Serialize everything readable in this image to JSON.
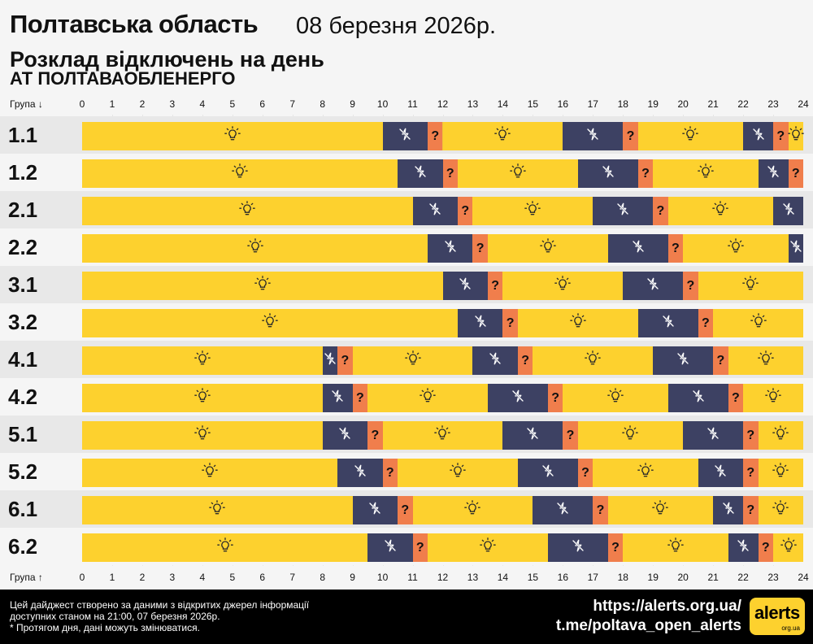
{
  "header": {
    "region": "Полтавська область",
    "date": "08 березня 2026р.",
    "subtitle": "Розклад відключень на день",
    "company": "АТ ПОЛТАВАОБЛЕНЕРГО"
  },
  "axis": {
    "group_label_top": "Група ↓",
    "group_label_bottom": "Група ↑",
    "hours": [
      "0",
      "1",
      "2",
      "3",
      "4",
      "5",
      "6",
      "7",
      "8",
      "9",
      "10",
      "11",
      "12",
      "13",
      "14",
      "15",
      "16",
      "17",
      "18",
      "19",
      "20",
      "21",
      "22",
      "23",
      "24"
    ]
  },
  "legend_icons": {
    "on": "lightbulb-icon",
    "off": "no-power-icon",
    "maybe": "question-mark"
  },
  "colors": {
    "on": "#fdd12e",
    "off": "#3d4163",
    "maybe": "#f07e4c",
    "background": "#f5f5f5"
  },
  "groups": [
    {
      "label": "1.1",
      "segments": [
        [
          "on",
          0,
          10
        ],
        [
          "off",
          10,
          11.5
        ],
        [
          "maybe",
          11.5,
          12
        ],
        [
          "on",
          12,
          16
        ],
        [
          "off",
          16,
          18
        ],
        [
          "maybe",
          18,
          18.5
        ],
        [
          "on",
          18.5,
          22
        ],
        [
          "off",
          22,
          23
        ],
        [
          "maybe",
          23,
          23.5
        ],
        [
          "on",
          23.5,
          24
        ]
      ]
    },
    {
      "label": "1.2",
      "segments": [
        [
          "on",
          0,
          10.5
        ],
        [
          "off",
          10.5,
          12
        ],
        [
          "maybe",
          12,
          12.5
        ],
        [
          "on",
          12.5,
          16.5
        ],
        [
          "off",
          16.5,
          18.5
        ],
        [
          "maybe",
          18.5,
          19
        ],
        [
          "on",
          19,
          22.5
        ],
        [
          "off",
          22.5,
          23.5
        ],
        [
          "maybe",
          23.5,
          24
        ]
      ]
    },
    {
      "label": "2.1",
      "segments": [
        [
          "on",
          0,
          11
        ],
        [
          "off",
          11,
          12.5
        ],
        [
          "maybe",
          12.5,
          13
        ],
        [
          "on",
          13,
          17
        ],
        [
          "off",
          17,
          19
        ],
        [
          "maybe",
          19,
          19.5
        ],
        [
          "on",
          19.5,
          23
        ],
        [
          "off",
          23,
          24
        ]
      ]
    },
    {
      "label": "2.2",
      "segments": [
        [
          "on",
          0,
          11.5
        ],
        [
          "off",
          11.5,
          13
        ],
        [
          "maybe",
          13,
          13.5
        ],
        [
          "on",
          13.5,
          17.5
        ],
        [
          "off",
          17.5,
          19.5
        ],
        [
          "maybe",
          19.5,
          20
        ],
        [
          "on",
          20,
          23.5
        ],
        [
          "off",
          23.5,
          24
        ]
      ]
    },
    {
      "label": "3.1",
      "segments": [
        [
          "on",
          0,
          12
        ],
        [
          "off",
          12,
          13.5
        ],
        [
          "maybe",
          13.5,
          14
        ],
        [
          "on",
          14,
          18
        ],
        [
          "off",
          18,
          20
        ],
        [
          "maybe",
          20,
          20.5
        ],
        [
          "on",
          20.5,
          24
        ]
      ]
    },
    {
      "label": "3.2",
      "segments": [
        [
          "on",
          0,
          12.5
        ],
        [
          "off",
          12.5,
          14
        ],
        [
          "maybe",
          14,
          14.5
        ],
        [
          "on",
          14.5,
          18.5
        ],
        [
          "off",
          18.5,
          20.5
        ],
        [
          "maybe",
          20.5,
          21
        ],
        [
          "on",
          21,
          24
        ]
      ]
    },
    {
      "label": "4.1",
      "segments": [
        [
          "on",
          0,
          8
        ],
        [
          "off",
          8,
          8.5
        ],
        [
          "maybe",
          8.5,
          9
        ],
        [
          "on",
          9,
          13
        ],
        [
          "off",
          13,
          14.5
        ],
        [
          "maybe",
          14.5,
          15
        ],
        [
          "on",
          15,
          19
        ],
        [
          "off",
          19,
          21
        ],
        [
          "maybe",
          21,
          21.5
        ],
        [
          "on",
          21.5,
          24
        ]
      ]
    },
    {
      "label": "4.2",
      "segments": [
        [
          "on",
          0,
          8
        ],
        [
          "off",
          8,
          9
        ],
        [
          "maybe",
          9,
          9.5
        ],
        [
          "on",
          9.5,
          13.5
        ],
        [
          "off",
          13.5,
          15.5
        ],
        [
          "maybe",
          15.5,
          16
        ],
        [
          "on",
          16,
          19.5
        ],
        [
          "off",
          19.5,
          21.5
        ],
        [
          "maybe",
          21.5,
          22
        ],
        [
          "on",
          22,
          24
        ]
      ]
    },
    {
      "label": "5.1",
      "segments": [
        [
          "on",
          0,
          8
        ],
        [
          "off",
          8,
          9.5
        ],
        [
          "maybe",
          9.5,
          10
        ],
        [
          "on",
          10,
          14
        ],
        [
          "off",
          14,
          16
        ],
        [
          "maybe",
          16,
          16.5
        ],
        [
          "on",
          16.5,
          20
        ],
        [
          "off",
          20,
          22
        ],
        [
          "maybe",
          22,
          22.5
        ],
        [
          "on",
          22.5,
          24
        ]
      ]
    },
    {
      "label": "5.2",
      "segments": [
        [
          "on",
          0,
          8.5
        ],
        [
          "off",
          8.5,
          10
        ],
        [
          "maybe",
          10,
          10.5
        ],
        [
          "on",
          10.5,
          14.5
        ],
        [
          "off",
          14.5,
          16.5
        ],
        [
          "maybe",
          16.5,
          17
        ],
        [
          "on",
          17,
          20.5
        ],
        [
          "off",
          20.5,
          22
        ],
        [
          "maybe",
          22,
          22.5
        ],
        [
          "on",
          22.5,
          24
        ]
      ]
    },
    {
      "label": "6.1",
      "segments": [
        [
          "on",
          0,
          9
        ],
        [
          "off",
          9,
          10.5
        ],
        [
          "maybe",
          10.5,
          11
        ],
        [
          "on",
          11,
          15
        ],
        [
          "off",
          15,
          17
        ],
        [
          "maybe",
          17,
          17.5
        ],
        [
          "on",
          17.5,
          21
        ],
        [
          "off",
          21,
          22
        ],
        [
          "maybe",
          22,
          22.5
        ],
        [
          "on",
          22.5,
          24
        ]
      ]
    },
    {
      "label": "6.2",
      "segments": [
        [
          "on",
          0,
          9.5
        ],
        [
          "off",
          9.5,
          11
        ],
        [
          "maybe",
          11,
          11.5
        ],
        [
          "on",
          11.5,
          15.5
        ],
        [
          "off",
          15.5,
          17.5
        ],
        [
          "maybe",
          17.5,
          18
        ],
        [
          "on",
          18,
          21.5
        ],
        [
          "off",
          21.5,
          22.5
        ],
        [
          "maybe",
          22.5,
          23
        ],
        [
          "on",
          23,
          24
        ]
      ]
    }
  ],
  "footer": {
    "note_line1": "Цей дайджест створено за даними з відкритих джерел інформації",
    "note_line2": "доступних станом на 21:00, 07 березня 2026р.",
    "note_line3": "* Протягом дня, дані можуть змінюватися.",
    "url1": "https://alerts.org.ua/",
    "url2": "t.me/poltava_open_alerts",
    "logo_text": "alerts",
    "logo_sub": "org.ua"
  }
}
